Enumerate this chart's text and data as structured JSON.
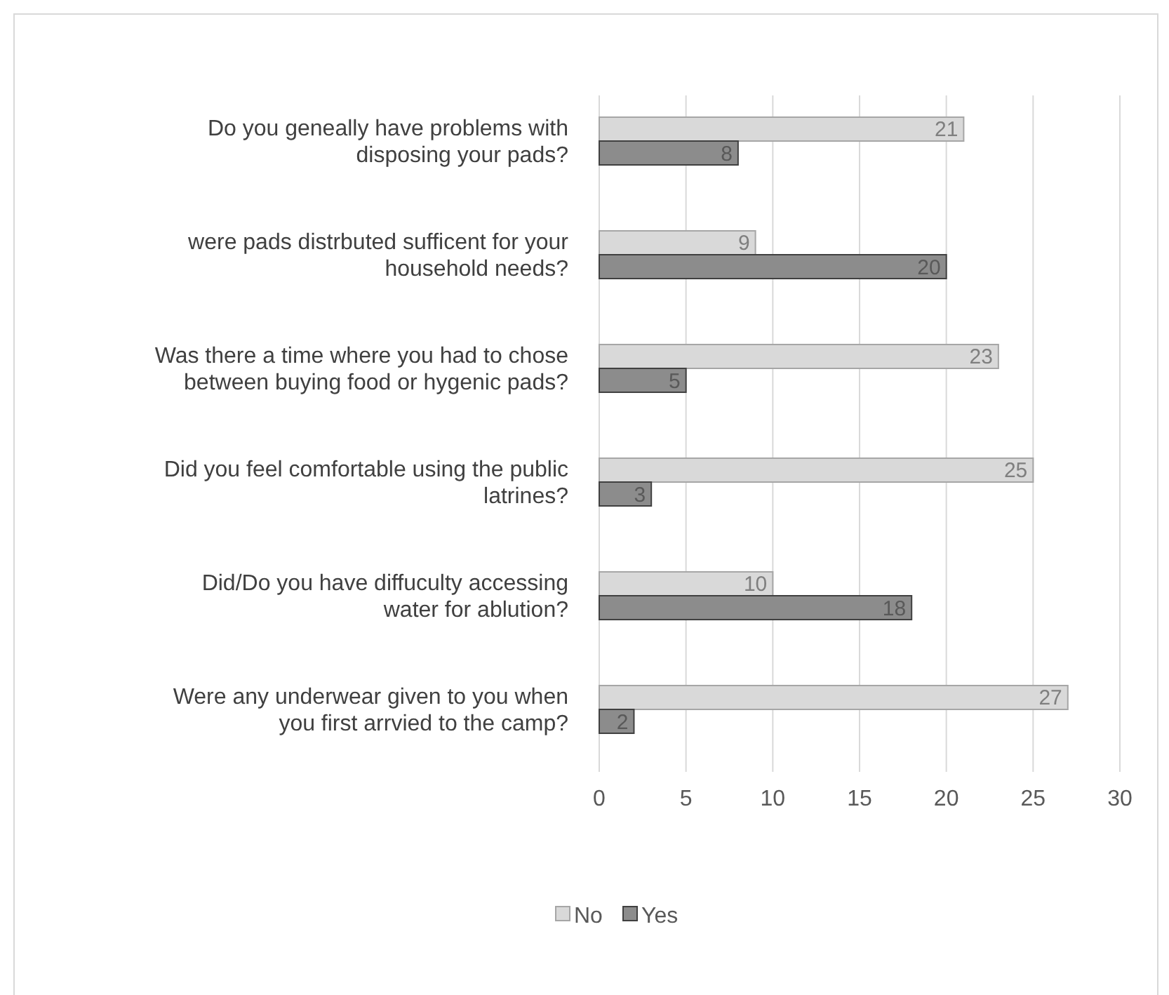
{
  "chart_data": {
    "type": "bar",
    "orientation": "horizontal",
    "categories": [
      "Do you geneally have problems with disposing your pads?",
      "were pads distrbuted sufficent for your household needs?",
      "Was there a time where you had to chose between buying food or hygenic pads?",
      "Did you feel comfortable using the public latrines?",
      "Did/Do you have diffuculty accessing water for ablution?",
      "Were any underwear given to you when you first arrvied to the camp?"
    ],
    "series": [
      {
        "name": "No",
        "color": "#d9d9d9",
        "values": [
          21,
          9,
          23,
          25,
          10,
          27
        ]
      },
      {
        "name": "Yes",
        "color": "#8c8c8c",
        "values": [
          8,
          20,
          5,
          3,
          18,
          2
        ]
      }
    ],
    "xlim": [
      0,
      30
    ],
    "xticks": [
      0,
      5,
      10,
      15,
      20,
      25,
      30
    ],
    "grid": "x",
    "legend": "bottom",
    "data_labels": true
  }
}
